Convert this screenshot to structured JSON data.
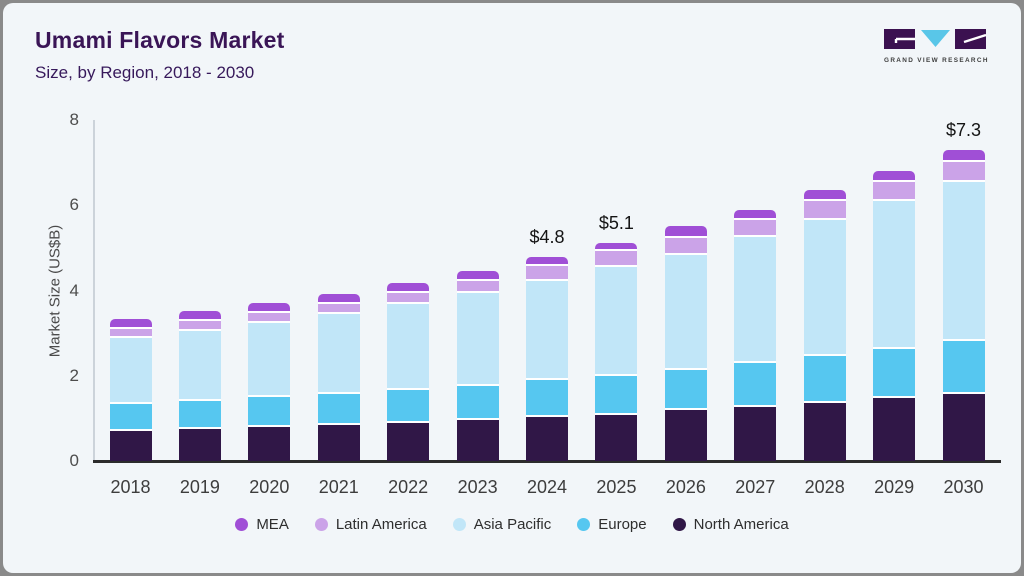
{
  "header": {
    "title": "Umami Flavors Market",
    "subtitle": "Size, by Region, 2018 - 2030",
    "logo": {
      "brand": "GRAND VIEW RESEARCH",
      "mark_purple": "#3B1150",
      "mark_blue": "#59C6E8"
    }
  },
  "chart_data": {
    "type": "bar",
    "stacked": true,
    "title": "Umami Flavors Market Size, by Region, 2018 - 2030",
    "xlabel": "",
    "ylabel": "Market Size (US$B)",
    "ylim": [
      0,
      8
    ],
    "yticks": [
      0,
      2,
      4,
      6,
      8
    ],
    "grid": false,
    "legend_position": "bottom",
    "categories": [
      "2018",
      "2019",
      "2020",
      "2021",
      "2022",
      "2023",
      "2024",
      "2025",
      "2026",
      "2027",
      "2028",
      "2029",
      "2030"
    ],
    "series": [
      {
        "name": "North America",
        "color": "#301747",
        "values": [
          0.76,
          0.8,
          0.85,
          0.9,
          0.95,
          1.01,
          1.07,
          1.13,
          1.24,
          1.31,
          1.41,
          1.53,
          1.62
        ]
      },
      {
        "name": "Europe",
        "color": "#56C7F0",
        "values": [
          0.63,
          0.66,
          0.69,
          0.72,
          0.76,
          0.79,
          0.87,
          0.91,
          0.95,
          1.04,
          1.09,
          1.15,
          1.24
        ]
      },
      {
        "name": "Asia Pacific",
        "color": "#C1E6F8",
        "values": [
          1.55,
          1.65,
          1.75,
          1.88,
          2.02,
          2.19,
          2.33,
          2.55,
          2.7,
          2.95,
          3.2,
          3.46,
          3.73
        ]
      },
      {
        "name": "Latin America",
        "color": "#CBA3E8",
        "values": [
          0.21,
          0.22,
          0.22,
          0.24,
          0.27,
          0.29,
          0.35,
          0.38,
          0.4,
          0.41,
          0.44,
          0.45,
          0.47
        ]
      },
      {
        "name": "MEA",
        "color": "#A04FD6",
        "values": [
          0.19,
          0.19,
          0.2,
          0.19,
          0.19,
          0.18,
          0.16,
          0.15,
          0.22,
          0.19,
          0.21,
          0.21,
          0.23
        ]
      }
    ],
    "totals": [
      3.34,
      3.52,
      3.71,
      3.93,
      4.19,
      4.46,
      4.78,
      5.12,
      5.51,
      5.9,
      6.35,
      6.8,
      7.29
    ],
    "annotations": [
      {
        "category": "2024",
        "label": "$4.8"
      },
      {
        "category": "2025",
        "label": "$5.1"
      },
      {
        "category": "2030",
        "label": "$7.3"
      }
    ]
  }
}
